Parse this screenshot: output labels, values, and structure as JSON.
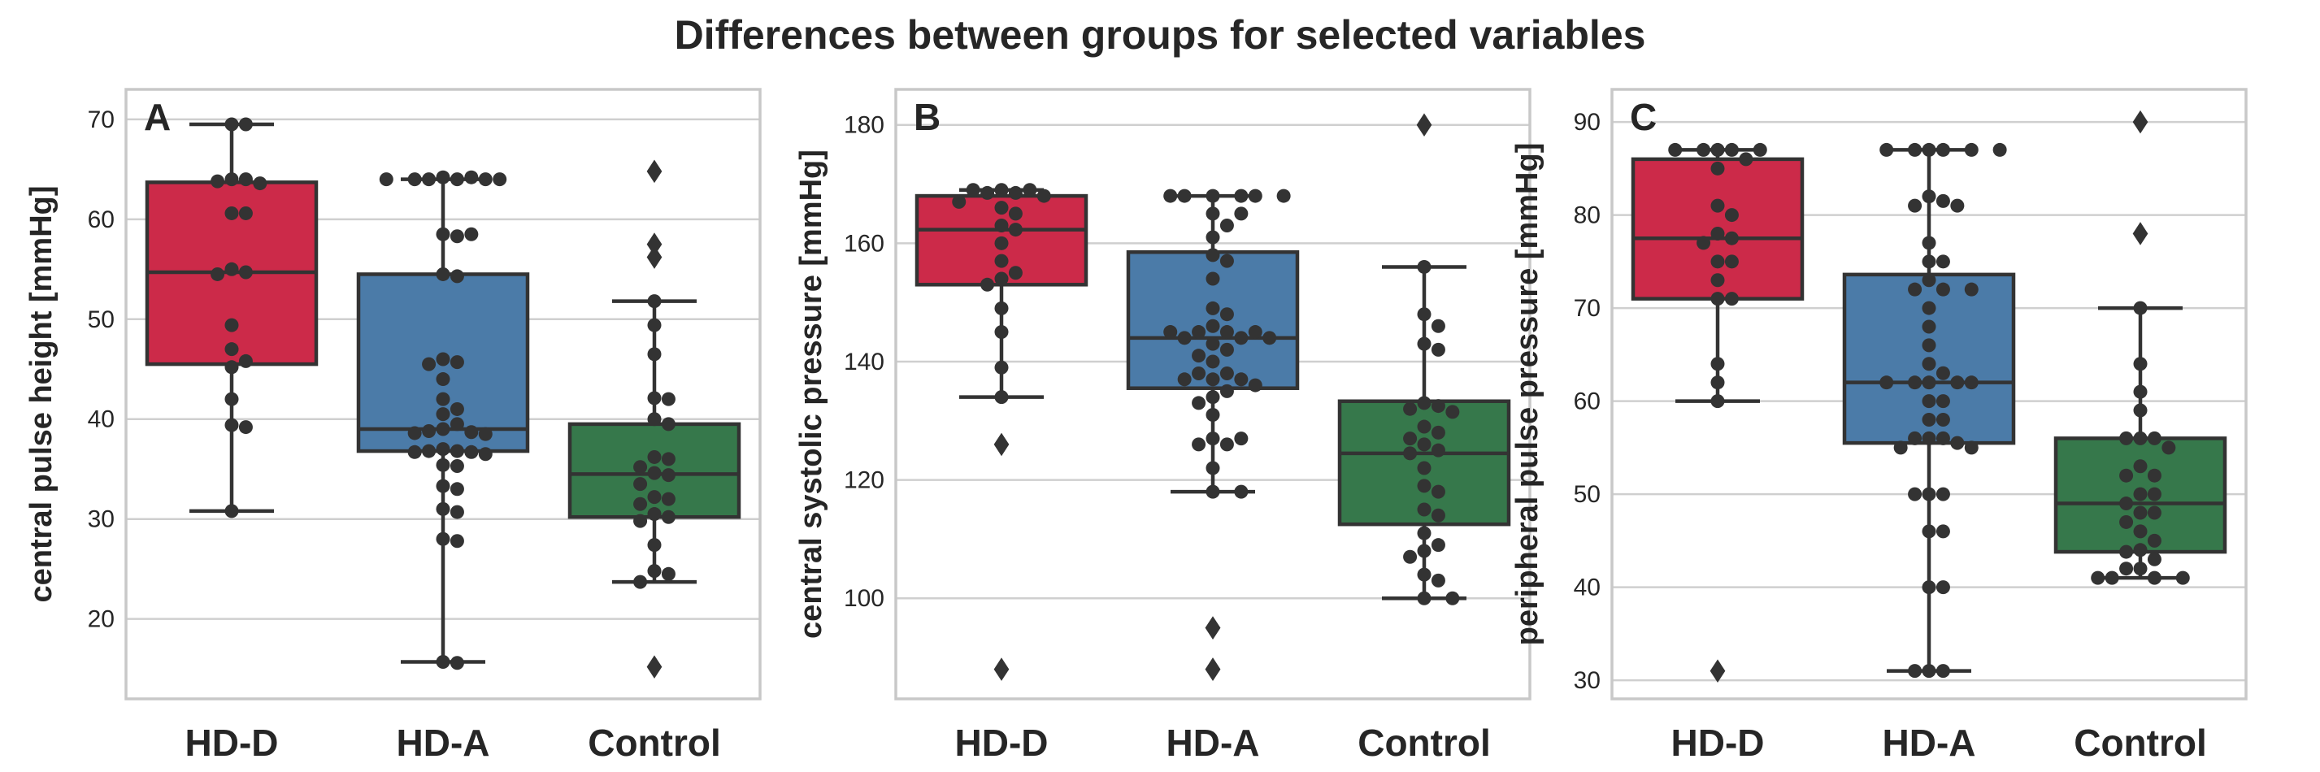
{
  "figure_title": "Differences between groups for selected variables",
  "colors": {
    "HD-D": "#cc2a49",
    "HD-A": "#4b7ba8",
    "Control": "#36784b",
    "line": "#333333",
    "grid": "#cfcfcf",
    "frame": "#c8c8c8"
  },
  "chart_data": [
    {
      "type": "box",
      "panel": "A",
      "title": "",
      "xlabel": "",
      "ylabel": "central pulse height [mmHg]",
      "categories": [
        "HD-D",
        "HD-A",
        "Control"
      ],
      "ylim": [
        12,
        73
      ],
      "yticks": [
        20,
        30,
        40,
        50,
        60,
        70
      ],
      "series": [
        {
          "name": "HD-D",
          "q1": 45.5,
          "median": 54.7,
          "q3": 63.7,
          "whisker_low": 30.8,
          "whisker_high": 69.5,
          "outliers": [],
          "points": [
            69.5,
            69.5,
            64.0,
            64.0,
            63.8,
            63.6,
            60.6,
            60.6,
            55.0,
            54.7,
            54.5,
            49.4,
            47.0,
            45.8,
            45.2,
            42.0,
            39.4,
            39.2,
            30.8
          ]
        },
        {
          "name": "HD-A",
          "q1": 36.8,
          "median": 39.0,
          "q3": 54.5,
          "whisker_low": 15.7,
          "whisker_high": 64.0,
          "outliers": [],
          "points": [
            64.2,
            64.2,
            64.0,
            64.0,
            64.0,
            64.0,
            64.0,
            64.0,
            58.5,
            58.5,
            58.3,
            54.5,
            54.3,
            46.0,
            45.7,
            45.5,
            44.0,
            42.0,
            41.0,
            40.5,
            39.5,
            39.0,
            38.8,
            38.7,
            38.6,
            38.5,
            37.0,
            36.8,
            36.8,
            36.7,
            36.7,
            36.5,
            35.4,
            35.3,
            33.3,
            33.0,
            31.0,
            30.7,
            28.0,
            27.8,
            15.7,
            15.6
          ]
        },
        {
          "name": "Control",
          "q1": 30.2,
          "median": 34.5,
          "q3": 39.5,
          "whisker_low": 23.7,
          "whisker_high": 51.8,
          "outliers": [
            64.8,
            57.5,
            56.2,
            15.2
          ],
          "points": [
            51.8,
            49.4,
            46.5,
            42.1,
            42.0,
            40.0,
            39.5,
            36.2,
            36.0,
            35.2,
            34.6,
            34.4,
            33.5,
            32.2,
            32.0,
            31.5,
            30.5,
            30.2,
            29.8,
            27.4,
            24.8,
            24.5,
            23.7
          ]
        }
      ]
    },
    {
      "type": "box",
      "panel": "B",
      "title": "",
      "xlabel": "",
      "ylabel": "central systolic pressure [mmHg]",
      "categories": [
        "HD-D",
        "HD-A",
        "Control"
      ],
      "ylim": [
        83,
        186
      ],
      "yticks": [
        100,
        120,
        140,
        160,
        180
      ],
      "series": [
        {
          "name": "HD-D",
          "q1": 153.0,
          "median": 162.3,
          "q3": 168.0,
          "whisker_low": 134.0,
          "whisker_high": 169.0,
          "outliers": [
            126.0,
            88.0
          ],
          "points": [
            169.0,
            169.0,
            169.0,
            168.5,
            168.5,
            168.0,
            167.0,
            166.0,
            165.0,
            163.0,
            162.3,
            160.0,
            157.0,
            155.0,
            154.0,
            153.0,
            149.0,
            145.0,
            139.0,
            134.0
          ]
        },
        {
          "name": "HD-A",
          "q1": 135.5,
          "median": 144.0,
          "q3": 158.5,
          "whisker_low": 118.0,
          "whisker_high": 168.0,
          "outliers": [
            95.0,
            95.0,
            88.0,
            88.0
          ],
          "points": [
            168.0,
            168.0,
            168.0,
            168.0,
            168.0,
            168.0,
            165.0,
            165.0,
            163.0,
            161.0,
            158.0,
            157.0,
            154.0,
            149.0,
            148.0,
            146.0,
            145.0,
            145.0,
            145.0,
            145.0,
            144.0,
            144.0,
            144.0,
            143.0,
            142.0,
            141.0,
            140.0,
            138.0,
            138.0,
            137.0,
            137.0,
            137.0,
            136.0,
            135.0,
            134.0,
            133.0,
            131.0,
            127.0,
            127.0,
            126.0,
            126.0,
            122.0,
            118.0,
            118.0
          ]
        },
        {
          "name": "Control",
          "q1": 112.5,
          "median": 124.5,
          "q3": 133.3,
          "whisker_low": 100.0,
          "whisker_high": 156.0,
          "outliers": [
            180.0
          ],
          "points": [
            156.0,
            148.0,
            146.0,
            143.0,
            142.0,
            133.0,
            132.5,
            132.0,
            131.5,
            129.0,
            128.0,
            127.0,
            126.0,
            125.0,
            124.5,
            122.0,
            119.0,
            118.0,
            115.0,
            114.0,
            111.0,
            109.0,
            108.0,
            107.0,
            104.0,
            103.0,
            100.0,
            100.0
          ]
        }
      ]
    },
    {
      "type": "box",
      "panel": "C",
      "title": "",
      "xlabel": "",
      "ylabel": "peripheral pulse pressure [mmHg]",
      "categories": [
        "HD-D",
        "HD-A",
        "Control"
      ],
      "ylim": [
        28,
        93.5
      ],
      "yticks": [
        30,
        40,
        50,
        60,
        70,
        80,
        90
      ],
      "series": [
        {
          "name": "HD-D",
          "q1": 71.0,
          "median": 77.5,
          "q3": 86.0,
          "whisker_low": 60.0,
          "whisker_high": 87.0,
          "outliers": [
            31.0
          ],
          "points": [
            87.0,
            87.0,
            87.0,
            87.0,
            87.0,
            86.0,
            85.0,
            81.0,
            80.0,
            78.0,
            77.5,
            77.0,
            75.0,
            75.0,
            73.0,
            71.0,
            71.0,
            64.0,
            62.0,
            60.0
          ]
        },
        {
          "name": "HD-A",
          "q1": 55.5,
          "median": 62.0,
          "q3": 73.6,
          "whisker_low": 31.0,
          "whisker_high": 87.0,
          "outliers": [],
          "points": [
            87.0,
            87.0,
            87.0,
            87.0,
            87.0,
            87.0,
            82.0,
            81.5,
            81.0,
            81.0,
            77.0,
            75.0,
            75.0,
            73.0,
            72.0,
            72.0,
            72.0,
            70.0,
            68.0,
            66.0,
            64.0,
            63.0,
            62.0,
            62.0,
            62.0,
            62.0,
            62.0,
            60.0,
            60.0,
            58.0,
            58.0,
            56.0,
            56.0,
            56.0,
            55.5,
            55.0,
            55.0,
            50.0,
            50.0,
            50.0,
            46.0,
            46.0,
            40.0,
            40.0,
            31.0,
            31.0,
            31.0
          ]
        },
        {
          "name": "Control",
          "q1": 43.8,
          "median": 49.0,
          "q3": 56.0,
          "whisker_low": 41.0,
          "whisker_high": 70.0,
          "outliers": [
            90.0,
            78.0
          ],
          "points": [
            70.0,
            64.0,
            61.0,
            59.0,
            56.0,
            56.0,
            56.0,
            55.0,
            53.0,
            52.0,
            52.0,
            50.0,
            50.0,
            49.0,
            48.0,
            48.0,
            47.0,
            46.0,
            45.0,
            44.0,
            43.8,
            43.0,
            42.0,
            42.0,
            41.0,
            41.0,
            41.0,
            41.0
          ]
        }
      ]
    }
  ]
}
